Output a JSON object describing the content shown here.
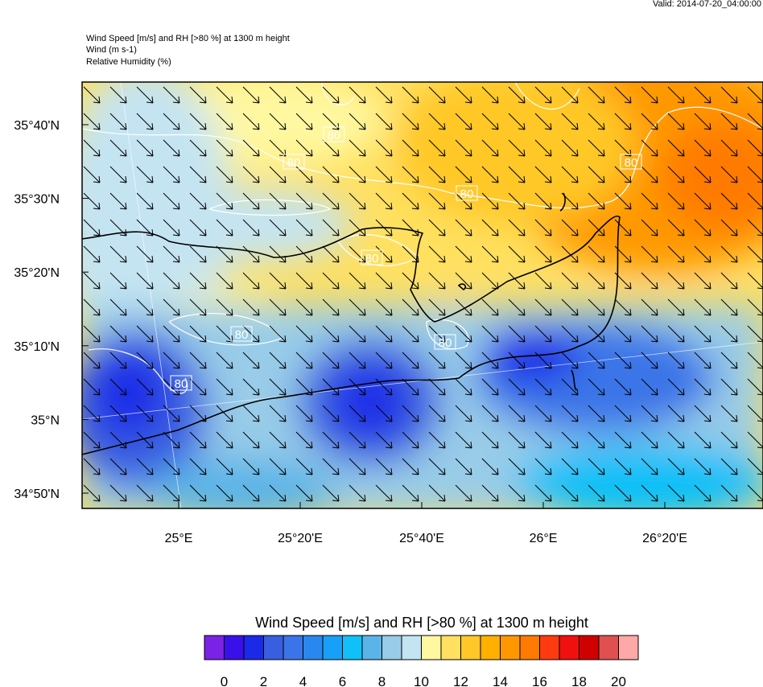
{
  "valid": "Valid: 2014-07-20_04:00:00",
  "header": [
    "Wind Speed [m/s] and RH [>80 %] at 1300 m height",
    "Wind   (m s-1)",
    "Relative Humidity   (%)"
  ],
  "map": {
    "lat_labels": [
      "35°40'N",
      "35°30'N",
      "35°20'N",
      "35°10'N",
      "35°N",
      "34°50'N"
    ],
    "lon_labels": [
      "25°E",
      "25°20'E",
      "25°40'E",
      "26°E",
      "26°20'E"
    ],
    "contour_labels": [
      "80",
      "80",
      "80",
      "80",
      "80",
      "80",
      "80",
      "80"
    ]
  },
  "colorbar": {
    "title": "Wind Speed [m/s] and RH [>80 %] at 1300 m height",
    "colors": [
      "#7a22e6",
      "#3a10ea",
      "#1a2ae8",
      "#3a5ee0",
      "#3a74e8",
      "#2888f0",
      "#18a0f8",
      "#10c0f8",
      "#5ab4e8",
      "#98cce8",
      "#c4e4f2",
      "#fff8a0",
      "#ffe060",
      "#ffc828",
      "#ffb000",
      "#ff9800",
      "#ff7a00",
      "#ff3a10",
      "#f01010",
      "#d00000",
      "#e05050",
      "#ffa8a8"
    ],
    "ticks": [
      0,
      2,
      4,
      6,
      8,
      10,
      12,
      14,
      16,
      18,
      20
    ]
  }
}
